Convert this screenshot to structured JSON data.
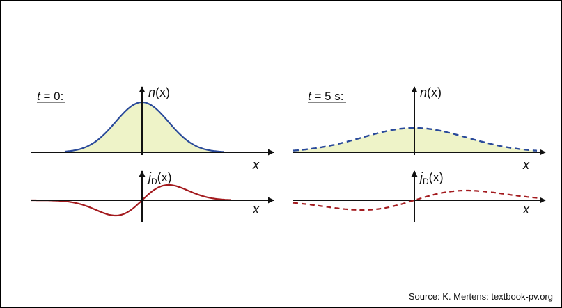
{
  "panels": [
    {
      "label_italic": "t",
      "label_rest": " = 0:",
      "density_fn": "n",
      "density_arg": "(x)",
      "current_fn": "j",
      "current_sub": "D",
      "current_arg": "(x)",
      "x_label": "x",
      "x_label2": "x",
      "line_style": "solid"
    },
    {
      "label_italic": "t",
      "label_rest": " = 5 s:",
      "density_fn": "n",
      "density_arg": "(x)",
      "current_fn": "j",
      "current_sub": "D",
      "current_arg": "(x)",
      "x_label": "x",
      "x_label2": "x",
      "line_style": "dashed"
    }
  ],
  "colors": {
    "density_curve": "#2a4a9a",
    "density_fill": "#eef3c8",
    "current_curve": "#a31a1e",
    "axis": "#111111"
  },
  "source": "Source: K. Mertens: textbook-pv.org"
}
